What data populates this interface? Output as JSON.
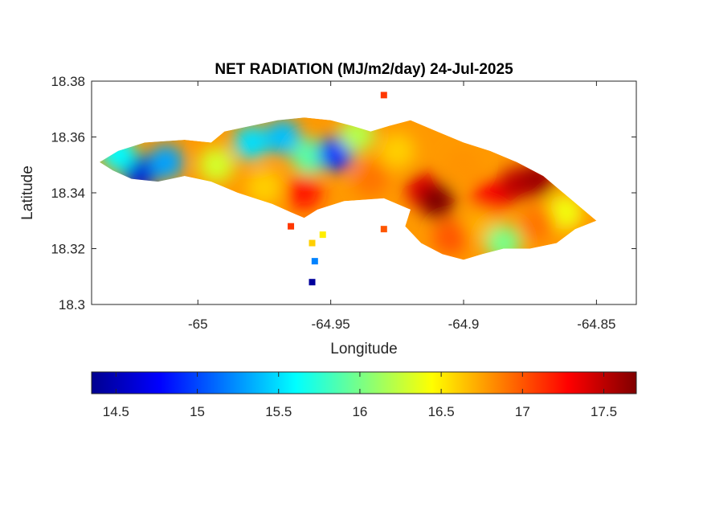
{
  "chart_data": {
    "type": "heatmap",
    "title": "NET RADIATION (MJ/m2/day) 24-Jul-2025",
    "xlabel": "Longitude",
    "ylabel": "Latitude",
    "xlim": [
      -65.04,
      -64.835
    ],
    "ylim": [
      18.3,
      18.38
    ],
    "x_ticks": [
      -65,
      -64.95,
      -64.9,
      -64.85
    ],
    "x_tick_labels": [
      "-65",
      "-64.95",
      "-64.9",
      "-64.85"
    ],
    "y_ticks": [
      18.3,
      18.32,
      18.34,
      18.36,
      18.38
    ],
    "y_tick_labels": [
      "18.3",
      "18.32",
      "18.34",
      "18.36",
      "18.38"
    ],
    "colormap": "jet",
    "colorbar": {
      "range": [
        14.35,
        17.7
      ],
      "ticks": [
        14.5,
        15,
        15.5,
        16,
        16.5,
        17,
        17.5
      ],
      "tick_labels": [
        "14.5",
        "15",
        "15.5",
        "16",
        "16.5",
        "17",
        "17.5"
      ],
      "position": "bottom"
    },
    "island_outline": [
      [
        -65.037,
        18.351
      ],
      [
        -65.03,
        18.355
      ],
      [
        -65.02,
        18.358
      ],
      [
        -65.005,
        18.359
      ],
      [
        -64.995,
        18.358
      ],
      [
        -64.99,
        18.362
      ],
      [
        -64.98,
        18.364
      ],
      [
        -64.97,
        18.366
      ],
      [
        -64.96,
        18.367
      ],
      [
        -64.95,
        18.366
      ],
      [
        -64.942,
        18.364
      ],
      [
        -64.935,
        18.362
      ],
      [
        -64.928,
        18.364
      ],
      [
        -64.92,
        18.366
      ],
      [
        -64.91,
        18.362
      ],
      [
        -64.9,
        18.358
      ],
      [
        -64.89,
        18.355
      ],
      [
        -64.88,
        18.351
      ],
      [
        -64.87,
        18.346
      ],
      [
        -64.86,
        18.338
      ],
      [
        -64.85,
        18.33
      ],
      [
        -64.858,
        18.327
      ],
      [
        -64.865,
        18.322
      ],
      [
        -64.875,
        18.32
      ],
      [
        -64.885,
        18.32
      ],
      [
        -64.893,
        18.318
      ],
      [
        -64.9,
        18.316
      ],
      [
        -64.908,
        18.318
      ],
      [
        -64.916,
        18.322
      ],
      [
        -64.922,
        18.328
      ],
      [
        -64.92,
        18.334
      ],
      [
        -64.93,
        18.338
      ],
      [
        -64.945,
        18.337
      ],
      [
        -64.955,
        18.334
      ],
      [
        -64.96,
        18.331
      ],
      [
        -64.965,
        18.333
      ],
      [
        -64.972,
        18.336
      ],
      [
        -64.985,
        18.34
      ],
      [
        -64.995,
        18.344
      ],
      [
        -65.005,
        18.346
      ],
      [
        -65.015,
        18.344
      ],
      [
        -65.025,
        18.345
      ],
      [
        -65.032,
        18.348
      ]
    ],
    "hotspots": [
      {
        "lon": -65.022,
        "lat": 18.347,
        "value": 14.6
      },
      {
        "lon": -65.012,
        "lat": 18.351,
        "value": 15.3
      },
      {
        "lon": -65.03,
        "lat": 18.354,
        "value": 15.6
      },
      {
        "lon": -64.993,
        "lat": 18.35,
        "value": 16.3
      },
      {
        "lon": -64.98,
        "lat": 18.358,
        "value": 15.5
      },
      {
        "lon": -64.968,
        "lat": 18.36,
        "value": 15.4
      },
      {
        "lon": -64.958,
        "lat": 18.353,
        "value": 15.9
      },
      {
        "lon": -64.948,
        "lat": 18.354,
        "value": 14.9
      },
      {
        "lon": -64.94,
        "lat": 18.361,
        "value": 16.2
      },
      {
        "lon": -64.96,
        "lat": 18.34,
        "value": 17.2
      },
      {
        "lon": -64.975,
        "lat": 18.342,
        "value": 16.6
      },
      {
        "lon": -64.935,
        "lat": 18.345,
        "value": 16.9
      },
      {
        "lon": -64.925,
        "lat": 18.355,
        "value": 16.6
      },
      {
        "lon": -64.915,
        "lat": 18.341,
        "value": 17.4
      },
      {
        "lon": -64.91,
        "lat": 18.337,
        "value": 17.7
      },
      {
        "lon": -64.9,
        "lat": 18.35,
        "value": 16.8
      },
      {
        "lon": -64.89,
        "lat": 18.338,
        "value": 17.3
      },
      {
        "lon": -64.88,
        "lat": 18.343,
        "value": 17.5
      },
      {
        "lon": -64.872,
        "lat": 18.345,
        "value": 17.6
      },
      {
        "lon": -64.893,
        "lat": 18.328,
        "value": 16.7
      },
      {
        "lon": -64.905,
        "lat": 18.324,
        "value": 17.0
      },
      {
        "lon": -64.862,
        "lat": 18.333,
        "value": 16.4
      },
      {
        "lon": -64.872,
        "lat": 18.329,
        "value": 16.9
      },
      {
        "lon": -64.885,
        "lat": 18.322,
        "value": 16.0
      }
    ],
    "islets": [
      {
        "lon": -64.956,
        "lat": 18.3155,
        "value": 15.2
      },
      {
        "lon": -64.957,
        "lat": 18.308,
        "value": 14.4
      },
      {
        "lon": -64.953,
        "lat": 18.325,
        "value": 16.5
      },
      {
        "lon": -64.957,
        "lat": 18.322,
        "value": 16.6
      },
      {
        "lon": -64.965,
        "lat": 18.328,
        "value": 17.1
      },
      {
        "lon": -64.93,
        "lat": 18.327,
        "value": 17.0
      },
      {
        "lon": -64.93,
        "lat": 18.375,
        "value": 17.1
      }
    ]
  }
}
